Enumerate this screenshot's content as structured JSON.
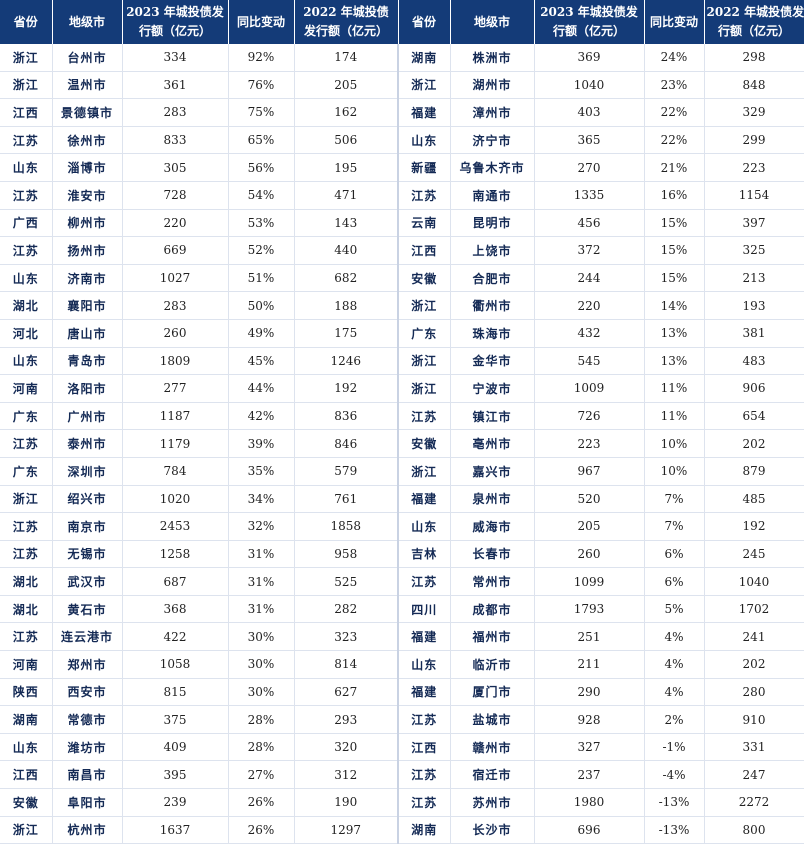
{
  "chart_data": {
    "type": "table",
    "columns": [
      "省份",
      "地级市",
      "2023 年城投债发行额（亿元）",
      "同比变动",
      "2022 年城投债发行额（亿元）",
      "省份",
      "地级市",
      "2023 年城投债发行额（亿元）",
      "同比变动",
      "2022 年城投债发行额（亿元）"
    ],
    "header_lines": [
      [
        "省份"
      ],
      [
        "地级市"
      ],
      [
        "2023 年城投债发",
        "行额（亿元）"
      ],
      [
        "同比变动"
      ],
      [
        "2022 年城投债",
        "发行额（亿元）"
      ],
      [
        "省份"
      ],
      [
        "地级市"
      ],
      [
        "2023 年城投债发",
        "行额（亿元）"
      ],
      [
        "同比变动"
      ],
      [
        "2022 年城投债发",
        "行额（亿元）"
      ]
    ],
    "rows": [
      [
        "浙江",
        "台州市",
        "334",
        "92%",
        "174",
        "湖南",
        "株洲市",
        "369",
        "24%",
        "298"
      ],
      [
        "浙江",
        "温州市",
        "361",
        "76%",
        "205",
        "浙江",
        "湖州市",
        "1040",
        "23%",
        "848"
      ],
      [
        "江西",
        "景德镇市",
        "283",
        "75%",
        "162",
        "福建",
        "漳州市",
        "403",
        "22%",
        "329"
      ],
      [
        "江苏",
        "徐州市",
        "833",
        "65%",
        "506",
        "山东",
        "济宁市",
        "365",
        "22%",
        "299"
      ],
      [
        "山东",
        "淄博市",
        "305",
        "56%",
        "195",
        "新疆",
        "乌鲁木齐市",
        "270",
        "21%",
        "223"
      ],
      [
        "江苏",
        "淮安市",
        "728",
        "54%",
        "471",
        "江苏",
        "南通市",
        "1335",
        "16%",
        "1154"
      ],
      [
        "广西",
        "柳州市",
        "220",
        "53%",
        "143",
        "云南",
        "昆明市",
        "456",
        "15%",
        "397"
      ],
      [
        "江苏",
        "扬州市",
        "669",
        "52%",
        "440",
        "江西",
        "上饶市",
        "372",
        "15%",
        "325"
      ],
      [
        "山东",
        "济南市",
        "1027",
        "51%",
        "682",
        "安徽",
        "合肥市",
        "244",
        "15%",
        "213"
      ],
      [
        "湖北",
        "襄阳市",
        "283",
        "50%",
        "188",
        "浙江",
        "衢州市",
        "220",
        "14%",
        "193"
      ],
      [
        "河北",
        "唐山市",
        "260",
        "49%",
        "175",
        "广东",
        "珠海市",
        "432",
        "13%",
        "381"
      ],
      [
        "山东",
        "青岛市",
        "1809",
        "45%",
        "1246",
        "浙江",
        "金华市",
        "545",
        "13%",
        "483"
      ],
      [
        "河南",
        "洛阳市",
        "277",
        "44%",
        "192",
        "浙江",
        "宁波市",
        "1009",
        "11%",
        "906"
      ],
      [
        "广东",
        "广州市",
        "1187",
        "42%",
        "836",
        "江苏",
        "镇江市",
        "726",
        "11%",
        "654"
      ],
      [
        "江苏",
        "泰州市",
        "1179",
        "39%",
        "846",
        "安徽",
        "亳州市",
        "223",
        "10%",
        "202"
      ],
      [
        "广东",
        "深圳市",
        "784",
        "35%",
        "579",
        "浙江",
        "嘉兴市",
        "967",
        "10%",
        "879"
      ],
      [
        "浙江",
        "绍兴市",
        "1020",
        "34%",
        "761",
        "福建",
        "泉州市",
        "520",
        "7%",
        "485"
      ],
      [
        "江苏",
        "南京市",
        "2453",
        "32%",
        "1858",
        "山东",
        "威海市",
        "205",
        "7%",
        "192"
      ],
      [
        "江苏",
        "无锡市",
        "1258",
        "31%",
        "958",
        "吉林",
        "长春市",
        "260",
        "6%",
        "245"
      ],
      [
        "湖北",
        "武汉市",
        "687",
        "31%",
        "525",
        "江苏",
        "常州市",
        "1099",
        "6%",
        "1040"
      ],
      [
        "湖北",
        "黄石市",
        "368",
        "31%",
        "282",
        "四川",
        "成都市",
        "1793",
        "5%",
        "1702"
      ],
      [
        "江苏",
        "连云港市",
        "422",
        "30%",
        "323",
        "福建",
        "福州市",
        "251",
        "4%",
        "241"
      ],
      [
        "河南",
        "郑州市",
        "1058",
        "30%",
        "814",
        "山东",
        "临沂市",
        "211",
        "4%",
        "202"
      ],
      [
        "陕西",
        "西安市",
        "815",
        "30%",
        "627",
        "福建",
        "厦门市",
        "290",
        "4%",
        "280"
      ],
      [
        "湖南",
        "常德市",
        "375",
        "28%",
        "293",
        "江苏",
        "盐城市",
        "928",
        "2%",
        "910"
      ],
      [
        "山东",
        "潍坊市",
        "409",
        "28%",
        "320",
        "江西",
        "赣州市",
        "327",
        "-1%",
        "331"
      ],
      [
        "江西",
        "南昌市",
        "395",
        "27%",
        "312",
        "江苏",
        "宿迁市",
        "237",
        "-4%",
        "247"
      ],
      [
        "安徽",
        "阜阳市",
        "239",
        "26%",
        "190",
        "江苏",
        "苏州市",
        "1980",
        "-13%",
        "2272"
      ],
      [
        "浙江",
        "杭州市",
        "1637",
        "26%",
        "1297",
        "湖南",
        "长沙市",
        "696",
        "-13%",
        "800"
      ]
    ]
  }
}
